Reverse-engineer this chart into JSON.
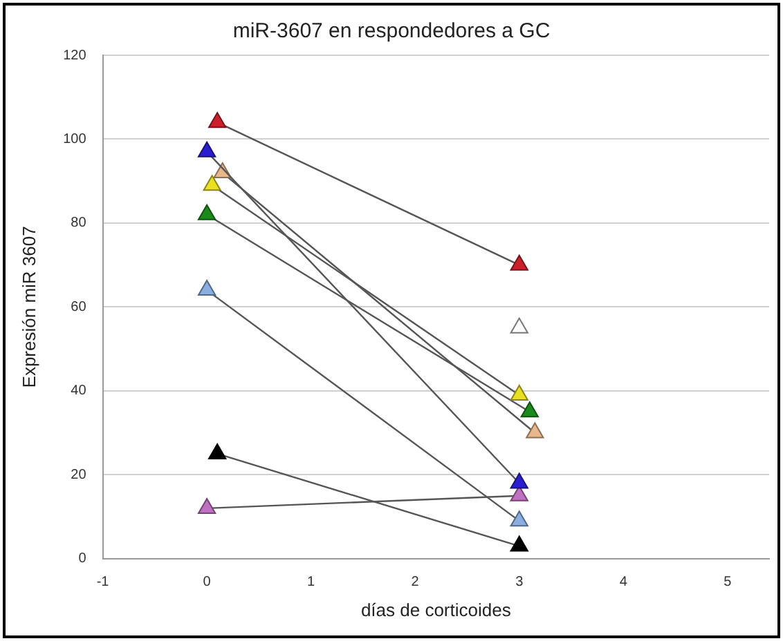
{
  "chart_data": {
    "type": "line",
    "title": "miR-3607 en respondedores a GC",
    "xlabel": "días de corticoides",
    "ylabel": "Expresión miR 3607",
    "xlim": [
      -1,
      5.4
    ],
    "xticks": [
      -1,
      0,
      1,
      2,
      3,
      4,
      5
    ],
    "ylim": [
      0,
      120
    ],
    "yticks": [
      0,
      20,
      40,
      60,
      80,
      100,
      120
    ],
    "grid": "y",
    "legend": false,
    "marker": "triangle",
    "line_style": "solid",
    "series": [
      {
        "color": "#cc1f2a",
        "x": [
          0.1,
          3
        ],
        "values": [
          104,
          70
        ]
      },
      {
        "color": "#2a1fd0",
        "x": [
          0,
          3
        ],
        "values": [
          97,
          18
        ]
      },
      {
        "color": "#e8b88a",
        "x": [
          0.15,
          3.15
        ],
        "values": [
          92,
          30
        ]
      },
      {
        "color": "#e8e020",
        "x": [
          0.05,
          3
        ],
        "values": [
          89,
          39
        ]
      },
      {
        "color": "#1a8a1a",
        "x": [
          0,
          3.1
        ],
        "values": [
          82,
          35
        ]
      },
      {
        "color": "#8aaee0",
        "x": [
          0,
          3
        ],
        "values": [
          64,
          9
        ]
      },
      {
        "color": "#000000",
        "x": [
          0.1,
          3
        ],
        "values": [
          25,
          3
        ]
      },
      {
        "color": "#c070c0",
        "x": [
          0,
          3
        ],
        "values": [
          12,
          15
        ]
      },
      {
        "color": "#ffffff",
        "x": [
          3
        ],
        "values": [
          55
        ]
      }
    ]
  }
}
